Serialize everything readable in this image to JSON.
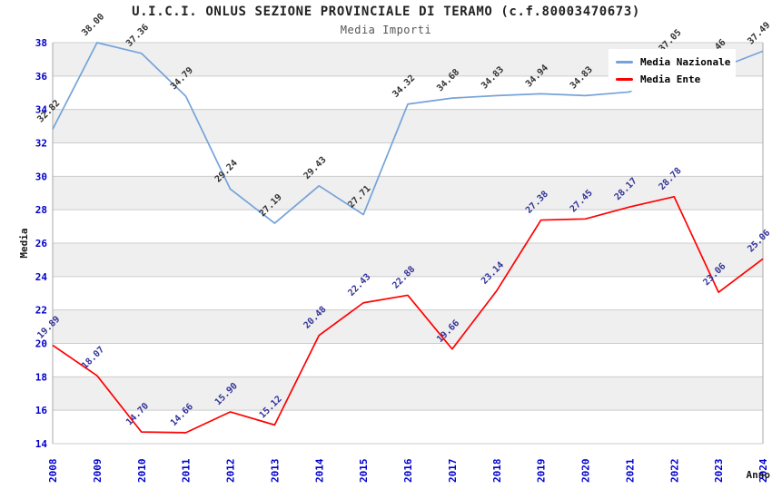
{
  "header": {
    "title": "U.I.C.I. ONLUS SEZIONE PROVINCIALE DI TERAMO (c.f.80003470673)",
    "subtitle": "Media Importi"
  },
  "chart_data": {
    "type": "line",
    "title": "U.I.C.I. ONLUS SEZIONE PROVINCIALE DI TERAMO (c.f.80003470673)",
    "subtitle": "Media Importi",
    "xlabel": "Anno",
    "ylabel": "Media",
    "x": [
      "2008",
      "2009",
      "2010",
      "2011",
      "2012",
      "2013",
      "2014",
      "2015",
      "2016",
      "2017",
      "2018",
      "2019",
      "2020",
      "2021",
      "2022",
      "2023",
      "2024"
    ],
    "ylim": [
      14,
      38
    ],
    "ytick_step": 2,
    "grid": "horizontal",
    "legend_position": "top-right",
    "colors": {
      "axis_tick_labels": "#0000cc",
      "gridline": "#cccccc",
      "plot_border": "#aaaaaa",
      "band_dark": "#efefef",
      "band_light": "#ffffff"
    },
    "series": [
      {
        "name": "Media Nazionale",
        "color": "#75a3d9",
        "label_color": "#333333",
        "values": [
          32.82,
          38.0,
          37.36,
          34.79,
          29.24,
          27.19,
          29.43,
          27.71,
          34.32,
          34.68,
          34.83,
          34.94,
          34.83,
          35.05,
          37.05,
          36.46,
          37.49
        ]
      },
      {
        "name": "Media Ente",
        "color": "#ff0000",
        "label_color": "#333399",
        "values": [
          19.89,
          18.07,
          14.7,
          14.66,
          15.9,
          15.12,
          20.48,
          22.43,
          22.88,
          19.66,
          23.14,
          27.38,
          27.45,
          28.17,
          28.78,
          23.06,
          25.06
        ]
      }
    ]
  }
}
